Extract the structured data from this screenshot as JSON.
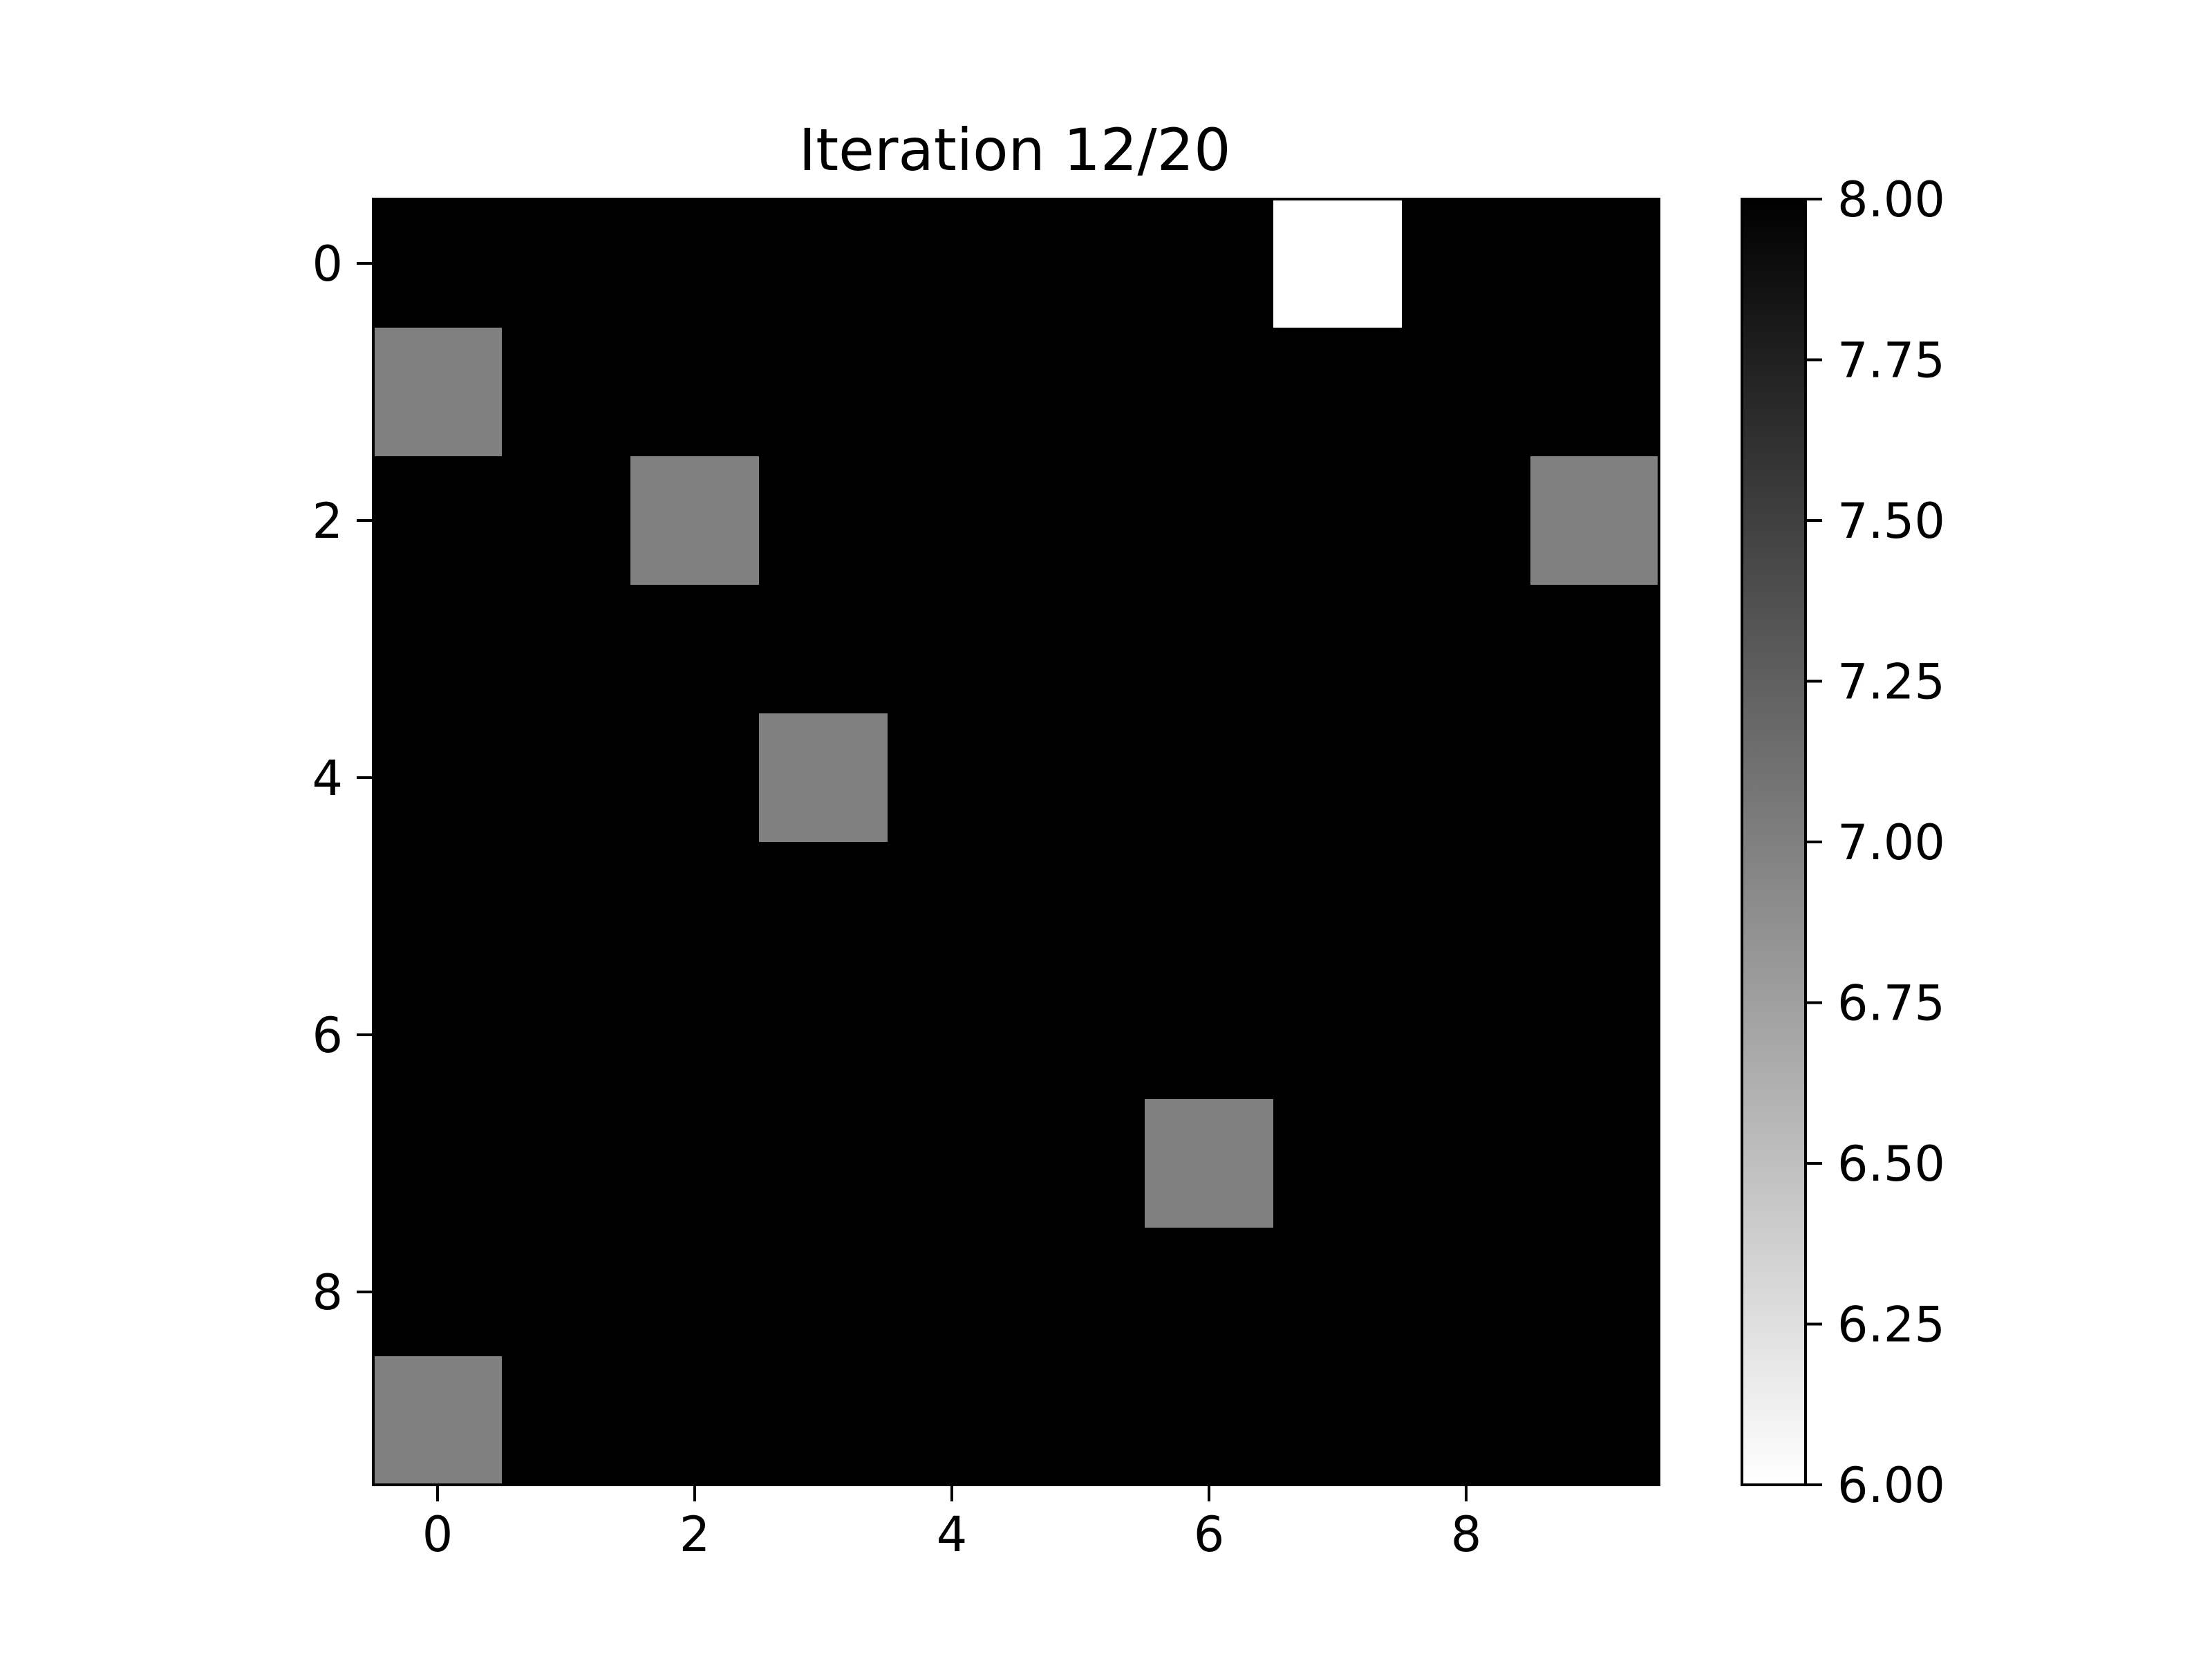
{
  "chart_data": {
    "type": "heatmap",
    "title": "Iteration 12/20",
    "xlabel": "",
    "ylabel": "",
    "colormap": "gray_r",
    "rows": 10,
    "cols": 10,
    "x_ticks": [
      0,
      2,
      4,
      6,
      8
    ],
    "x_tick_labels": [
      "0",
      "2",
      "4",
      "6",
      "8"
    ],
    "y_ticks": [
      0,
      2,
      4,
      6,
      8
    ],
    "y_tick_labels": [
      "0",
      "2",
      "4",
      "6",
      "8"
    ],
    "values": [
      [
        8,
        8,
        8,
        8,
        8,
        8,
        8,
        6,
        8,
        8
      ],
      [
        7,
        8,
        8,
        8,
        8,
        8,
        8,
        8,
        8,
        8
      ],
      [
        8,
        8,
        7,
        8,
        8,
        8,
        8,
        8,
        8,
        7
      ],
      [
        8,
        8,
        8,
        8,
        8,
        8,
        8,
        8,
        8,
        8
      ],
      [
        8,
        8,
        8,
        7,
        8,
        8,
        8,
        8,
        8,
        8
      ],
      [
        8,
        8,
        8,
        8,
        8,
        8,
        8,
        8,
        8,
        8
      ],
      [
        8,
        8,
        8,
        8,
        8,
        8,
        8,
        8,
        8,
        8
      ],
      [
        8,
        8,
        8,
        8,
        8,
        8,
        7,
        8,
        8,
        8
      ],
      [
        8,
        8,
        8,
        8,
        8,
        8,
        8,
        8,
        8,
        8
      ],
      [
        7,
        8,
        8,
        8,
        8,
        8,
        8,
        8,
        8,
        8
      ]
    ],
    "colorbar": {
      "vmin": 6.0,
      "vmax": 8.0,
      "ticks": [
        6.0,
        6.25,
        6.5,
        6.75,
        7.0,
        7.25,
        7.5,
        7.75,
        8.0
      ],
      "tick_labels": [
        "6.00",
        "6.25",
        "6.50",
        "6.75",
        "7.00",
        "7.25",
        "7.50",
        "7.75",
        "8.00"
      ]
    },
    "grid": false,
    "legend": "none"
  }
}
